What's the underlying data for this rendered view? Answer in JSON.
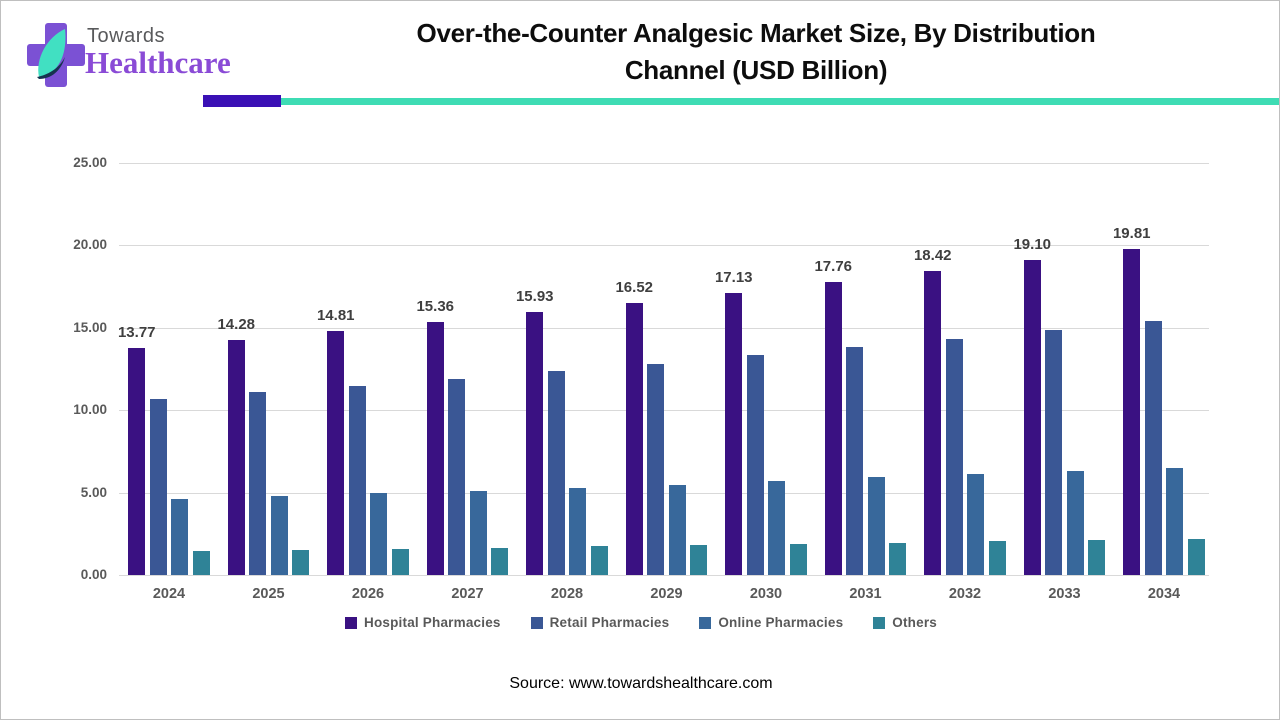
{
  "logo": {
    "towards": "Towards",
    "healthcare": "Healthcare",
    "cross_color": "#7b51d4",
    "leaf_color": "#41e0c2",
    "swoosh_color": "#16324f"
  },
  "title_lines": {
    "line1": "Over-the-Counter Analgesic Market Size, By Distribution",
    "line2": "Channel (USD Billion)"
  },
  "accent_bar": {
    "purple": "#3a10b5",
    "teal": "#3edcb4"
  },
  "source": "Source: www.towardshealthcare.com",
  "chart_data": {
    "type": "bar",
    "title": "Over-the-Counter Analgesic Market Size, By Distribution Channel (USD Billion)",
    "xlabel": "",
    "ylabel": "",
    "ylim": [
      0,
      25
    ],
    "ytick_step": 5,
    "ytick_labels": [
      "0.00",
      "5.00",
      "10.00",
      "15.00",
      "20.00",
      "25.00"
    ],
    "grid": true,
    "legend_position": "bottom",
    "categories": [
      "2024",
      "2025",
      "2026",
      "2027",
      "2028",
      "2029",
      "2030",
      "2031",
      "2032",
      "2033",
      "2034"
    ],
    "series": [
      {
        "name": "Hospital Pharmacies",
        "color": "#3a1182",
        "value_labels_shown": true,
        "values": [
          13.77,
          14.28,
          14.81,
          15.36,
          15.93,
          16.52,
          17.13,
          17.76,
          18.42,
          19.1,
          19.81
        ]
      },
      {
        "name": "Retail Pharmacies",
        "color": "#3a5795",
        "value_labels_shown": false,
        "values": [
          10.7,
          11.08,
          11.48,
          11.9,
          12.35,
          12.8,
          13.32,
          13.82,
          14.32,
          14.85,
          15.4
        ]
      },
      {
        "name": "Online Pharmacies",
        "color": "#38689b",
        "value_labels_shown": false,
        "values": [
          4.6,
          4.78,
          4.95,
          5.12,
          5.28,
          5.48,
          5.7,
          5.92,
          6.1,
          6.32,
          6.52
        ]
      },
      {
        "name": "Others",
        "color": "#2f8397",
        "value_labels_shown": false,
        "values": [
          1.45,
          1.53,
          1.6,
          1.66,
          1.74,
          1.81,
          1.9,
          1.97,
          2.05,
          2.12,
          2.2
        ]
      }
    ]
  }
}
